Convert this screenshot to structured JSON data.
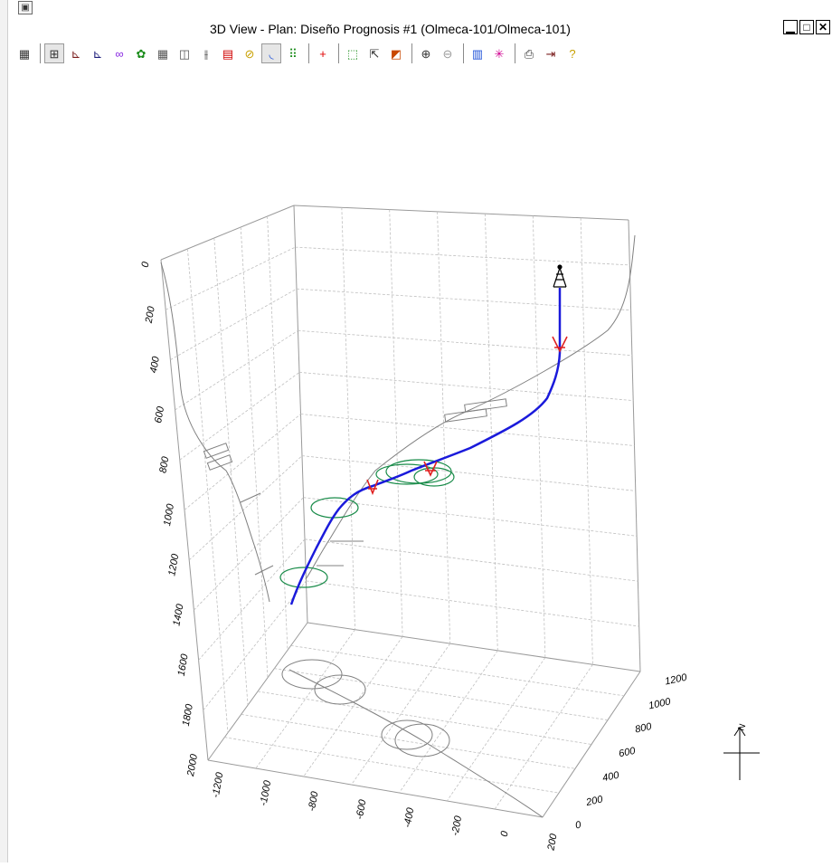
{
  "window": {
    "title": "3D View - Plan: Diseño Prognosis #1 (Olmeca-101/Olmeca-101)",
    "sys_icon": "window-system-icon",
    "buttons": [
      {
        "name": "minimize-button",
        "glyph": "▁"
      },
      {
        "name": "maximize-button",
        "glyph": "□"
      },
      {
        "name": "close-button",
        "glyph": "✕"
      }
    ]
  },
  "toolbar": {
    "groups": [
      [
        {
          "icon": "calculator-icon",
          "glyph": "▦",
          "color": "#333333"
        }
      ],
      [
        {
          "icon": "keypad-icon",
          "glyph": "⊞",
          "color": "#333333"
        },
        {
          "icon": "vertical-section-icon",
          "glyph": "⊾",
          "color": "#7a1c1c"
        },
        {
          "icon": "horizontal-section-icon",
          "glyph": "⊾",
          "color": "#1c1c7a"
        },
        {
          "icon": "nodes-icon",
          "glyph": "∞",
          "color": "#8a2be2"
        },
        {
          "icon": "shapes-icon",
          "glyph": "✿",
          "color": "#1a8c1a"
        },
        {
          "icon": "grid-icon",
          "glyph": "▦",
          "color": "#555555"
        },
        {
          "icon": "map-icon",
          "glyph": "◫",
          "color": "#555555"
        },
        {
          "icon": "wells-icon",
          "glyph": "⫲",
          "color": "#333333"
        },
        {
          "icon": "layers-icon",
          "glyph": "▤",
          "color": "#d00000"
        },
        {
          "icon": "cylinder-icon",
          "glyph": "⊘",
          "color": "#c8a000"
        },
        {
          "icon": "curve-icon",
          "glyph": "◟",
          "color": "#1c4fd8"
        },
        {
          "icon": "dots-grid-icon",
          "glyph": "⠿",
          "color": "#1a8c1a"
        }
      ],
      [
        {
          "icon": "crosshair-icon",
          "glyph": "+",
          "color": "#e00000"
        }
      ],
      [
        {
          "icon": "zoom-window-icon",
          "glyph": "⬚",
          "color": "#1a8c1a"
        },
        {
          "icon": "select-pointer-icon",
          "glyph": "⇱",
          "color": "#333333"
        },
        {
          "icon": "rotate-view-icon",
          "glyph": "◩",
          "color": "#c84800"
        }
      ],
      [
        {
          "icon": "zoom-in-icon",
          "glyph": "⊕",
          "color": "#333333"
        },
        {
          "icon": "zoom-out-icon",
          "glyph": "⊖",
          "color": "#9a9a9a"
        }
      ],
      [
        {
          "icon": "bars-chart-icon",
          "glyph": "▥",
          "color": "#1c4fd8"
        },
        {
          "icon": "fan-icon",
          "glyph": "✳",
          "color": "#d00090"
        }
      ],
      [
        {
          "icon": "print-icon",
          "glyph": "⎙",
          "color": "#333333"
        },
        {
          "icon": "export-icon",
          "glyph": "⇥",
          "color": "#7a1c1c"
        },
        {
          "icon": "help-icon",
          "glyph": "?",
          "color": "#c8a000"
        }
      ]
    ]
  },
  "plot": {
    "depth_ticks": [
      "0",
      "200",
      "400",
      "600",
      "800",
      "1000",
      "1200",
      "1400",
      "1600",
      "1800",
      "2000"
    ],
    "x_ticks": [
      "-1200",
      "-1000",
      "-800",
      "-600",
      "-400",
      "-200",
      "0",
      "200"
    ],
    "y_ticks": [
      "0",
      "200",
      "400",
      "600",
      "800",
      "1000",
      "1200"
    ],
    "north_label": "N",
    "well_color": "#1a1adb",
    "target_color": "#1a8c4a",
    "marker_color": "#e02020",
    "shadow_color": "#808080"
  }
}
